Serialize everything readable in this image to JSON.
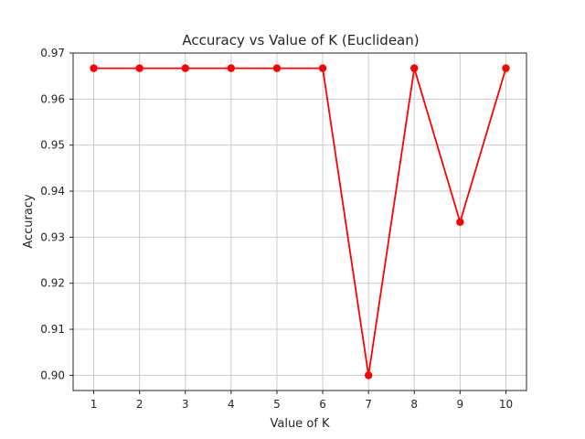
{
  "chart_data": {
    "type": "line",
    "title": "Accuracy vs Value of K (Euclidean)",
    "xlabel": "Value of K",
    "ylabel": "Accuracy",
    "x": [
      1,
      2,
      3,
      4,
      5,
      6,
      7,
      8,
      9,
      10
    ],
    "series": [
      {
        "values": [
          0.9667,
          0.9667,
          0.9667,
          0.9667,
          0.9667,
          0.9667,
          0.9,
          0.9667,
          0.9333,
          0.9667
        ],
        "color": "#ff0000",
        "marker": "circle"
      }
    ],
    "xlim": [
      0.55,
      10.45
    ],
    "ylim": [
      0.8967,
      0.97
    ],
    "x_ticks": [
      "1",
      "2",
      "3",
      "4",
      "5",
      "6",
      "7",
      "8",
      "9",
      "10"
    ],
    "y_ticks": [
      "0.90",
      "0.91",
      "0.92",
      "0.93",
      "0.94",
      "0.95",
      "0.96",
      "0.97"
    ],
    "grid": true,
    "legend": "none"
  }
}
